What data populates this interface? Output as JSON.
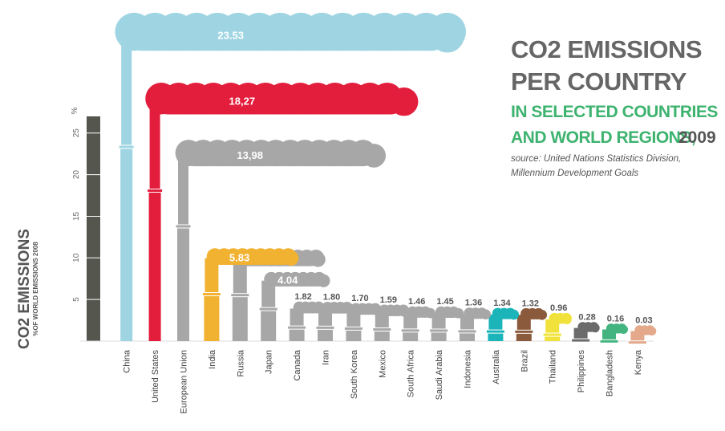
{
  "chart_data": {
    "type": "bar",
    "title_lines": [
      "CO2 EMISSIONS",
      "PER COUNTRY"
    ],
    "subtitle_lines": [
      "IN SELECTED COUNTRIES",
      "AND WORLD REGIONS,"
    ],
    "year": "2009",
    "source_lines": [
      "source: United Nations Statistics Division,",
      "Millennium Development Goals"
    ],
    "y_label": "CO2 EMISSIONS",
    "y_sublabel": "%OF WORLD EMISSIONS 2008",
    "y_unit": "%",
    "categories": [
      "China",
      "United States",
      "European Union",
      "India",
      "Russia",
      "Japan",
      "Canada",
      "Iran",
      "South Korea",
      "Mexico",
      "South Africa",
      "Saudi Arabia",
      "Indonesia",
      "Australia",
      "Brazil",
      "Thailand",
      "Philippines",
      "Bangladesh",
      "Kenya"
    ],
    "values": [
      23.53,
      18.27,
      13.98,
      5.83,
      5.72,
      4.04,
      1.82,
      1.8,
      1.7,
      1.59,
      1.46,
      1.45,
      1.36,
      1.34,
      1.32,
      0.96,
      0.28,
      0.16,
      0.03
    ],
    "value_labels": [
      "23.53",
      "18,27",
      "13,98",
      "5.83",
      "5.72",
      "4.04",
      "1.82",
      "1.80",
      "1.70",
      "1.59",
      "1.46",
      "1.45",
      "1.36",
      "1.34",
      "1.32",
      "0.96",
      "0.28",
      "0.16",
      "0.03"
    ],
    "colors": [
      "#9fd5e3",
      "#e31d3c",
      "#a8a7a7",
      "#f2b231",
      "#a8a7a7",
      "#a8a7a7",
      "#a8a7a7",
      "#a8a7a7",
      "#a8a7a7",
      "#a8a7a7",
      "#a8a7a7",
      "#a8a7a7",
      "#a8a7a7",
      "#1bb4b9",
      "#8b5a3c",
      "#f1e23b",
      "#6b6b6b",
      "#43b47f",
      "#e3a98a"
    ],
    "ylim": [
      0,
      27
    ],
    "yticks": [
      5,
      10,
      15,
      20,
      25
    ]
  }
}
